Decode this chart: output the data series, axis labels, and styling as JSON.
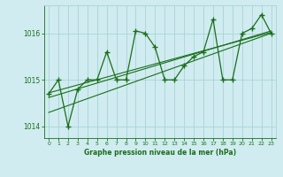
{
  "xlabel": "Graphe pression niveau de la mer (hPa)",
  "bg_color": "#d0ecf0",
  "grid_color": "#a8d4d8",
  "line_color": "#1a6e1a",
  "tick_color": "#1a6e1a",
  "label_color": "#1a6e1a",
  "x_values": [
    0,
    1,
    2,
    3,
    4,
    5,
    6,
    7,
    8,
    9,
    10,
    11,
    12,
    13,
    14,
    15,
    16,
    17,
    18,
    19,
    20,
    21,
    22,
    23
  ],
  "y_main": [
    1014.7,
    1015.0,
    1014.0,
    1014.8,
    1015.0,
    1015.0,
    1015.6,
    1015.0,
    1015.0,
    1016.05,
    1016.0,
    1015.7,
    1015.0,
    1015.0,
    1015.3,
    1015.5,
    1015.6,
    1016.3,
    1015.0,
    1015.0,
    1016.0,
    1016.1,
    1016.4,
    1016.0
  ],
  "ylim": [
    1013.75,
    1016.6
  ],
  "yticks": [
    1014,
    1015,
    1016
  ],
  "xticks": [
    0,
    1,
    2,
    3,
    4,
    5,
    6,
    7,
    8,
    9,
    10,
    11,
    12,
    13,
    14,
    15,
    16,
    17,
    18,
    19,
    20,
    21,
    22,
    23
  ],
  "trend1_x": [
    0,
    23
  ],
  "trend1_y": [
    1014.72,
    1016.02
  ],
  "trend2_x": [
    0,
    23
  ],
  "trend2_y": [
    1014.62,
    1016.05
  ],
  "trend3_x": [
    0,
    23
  ],
  "trend3_y": [
    1014.3,
    1016.0
  ]
}
